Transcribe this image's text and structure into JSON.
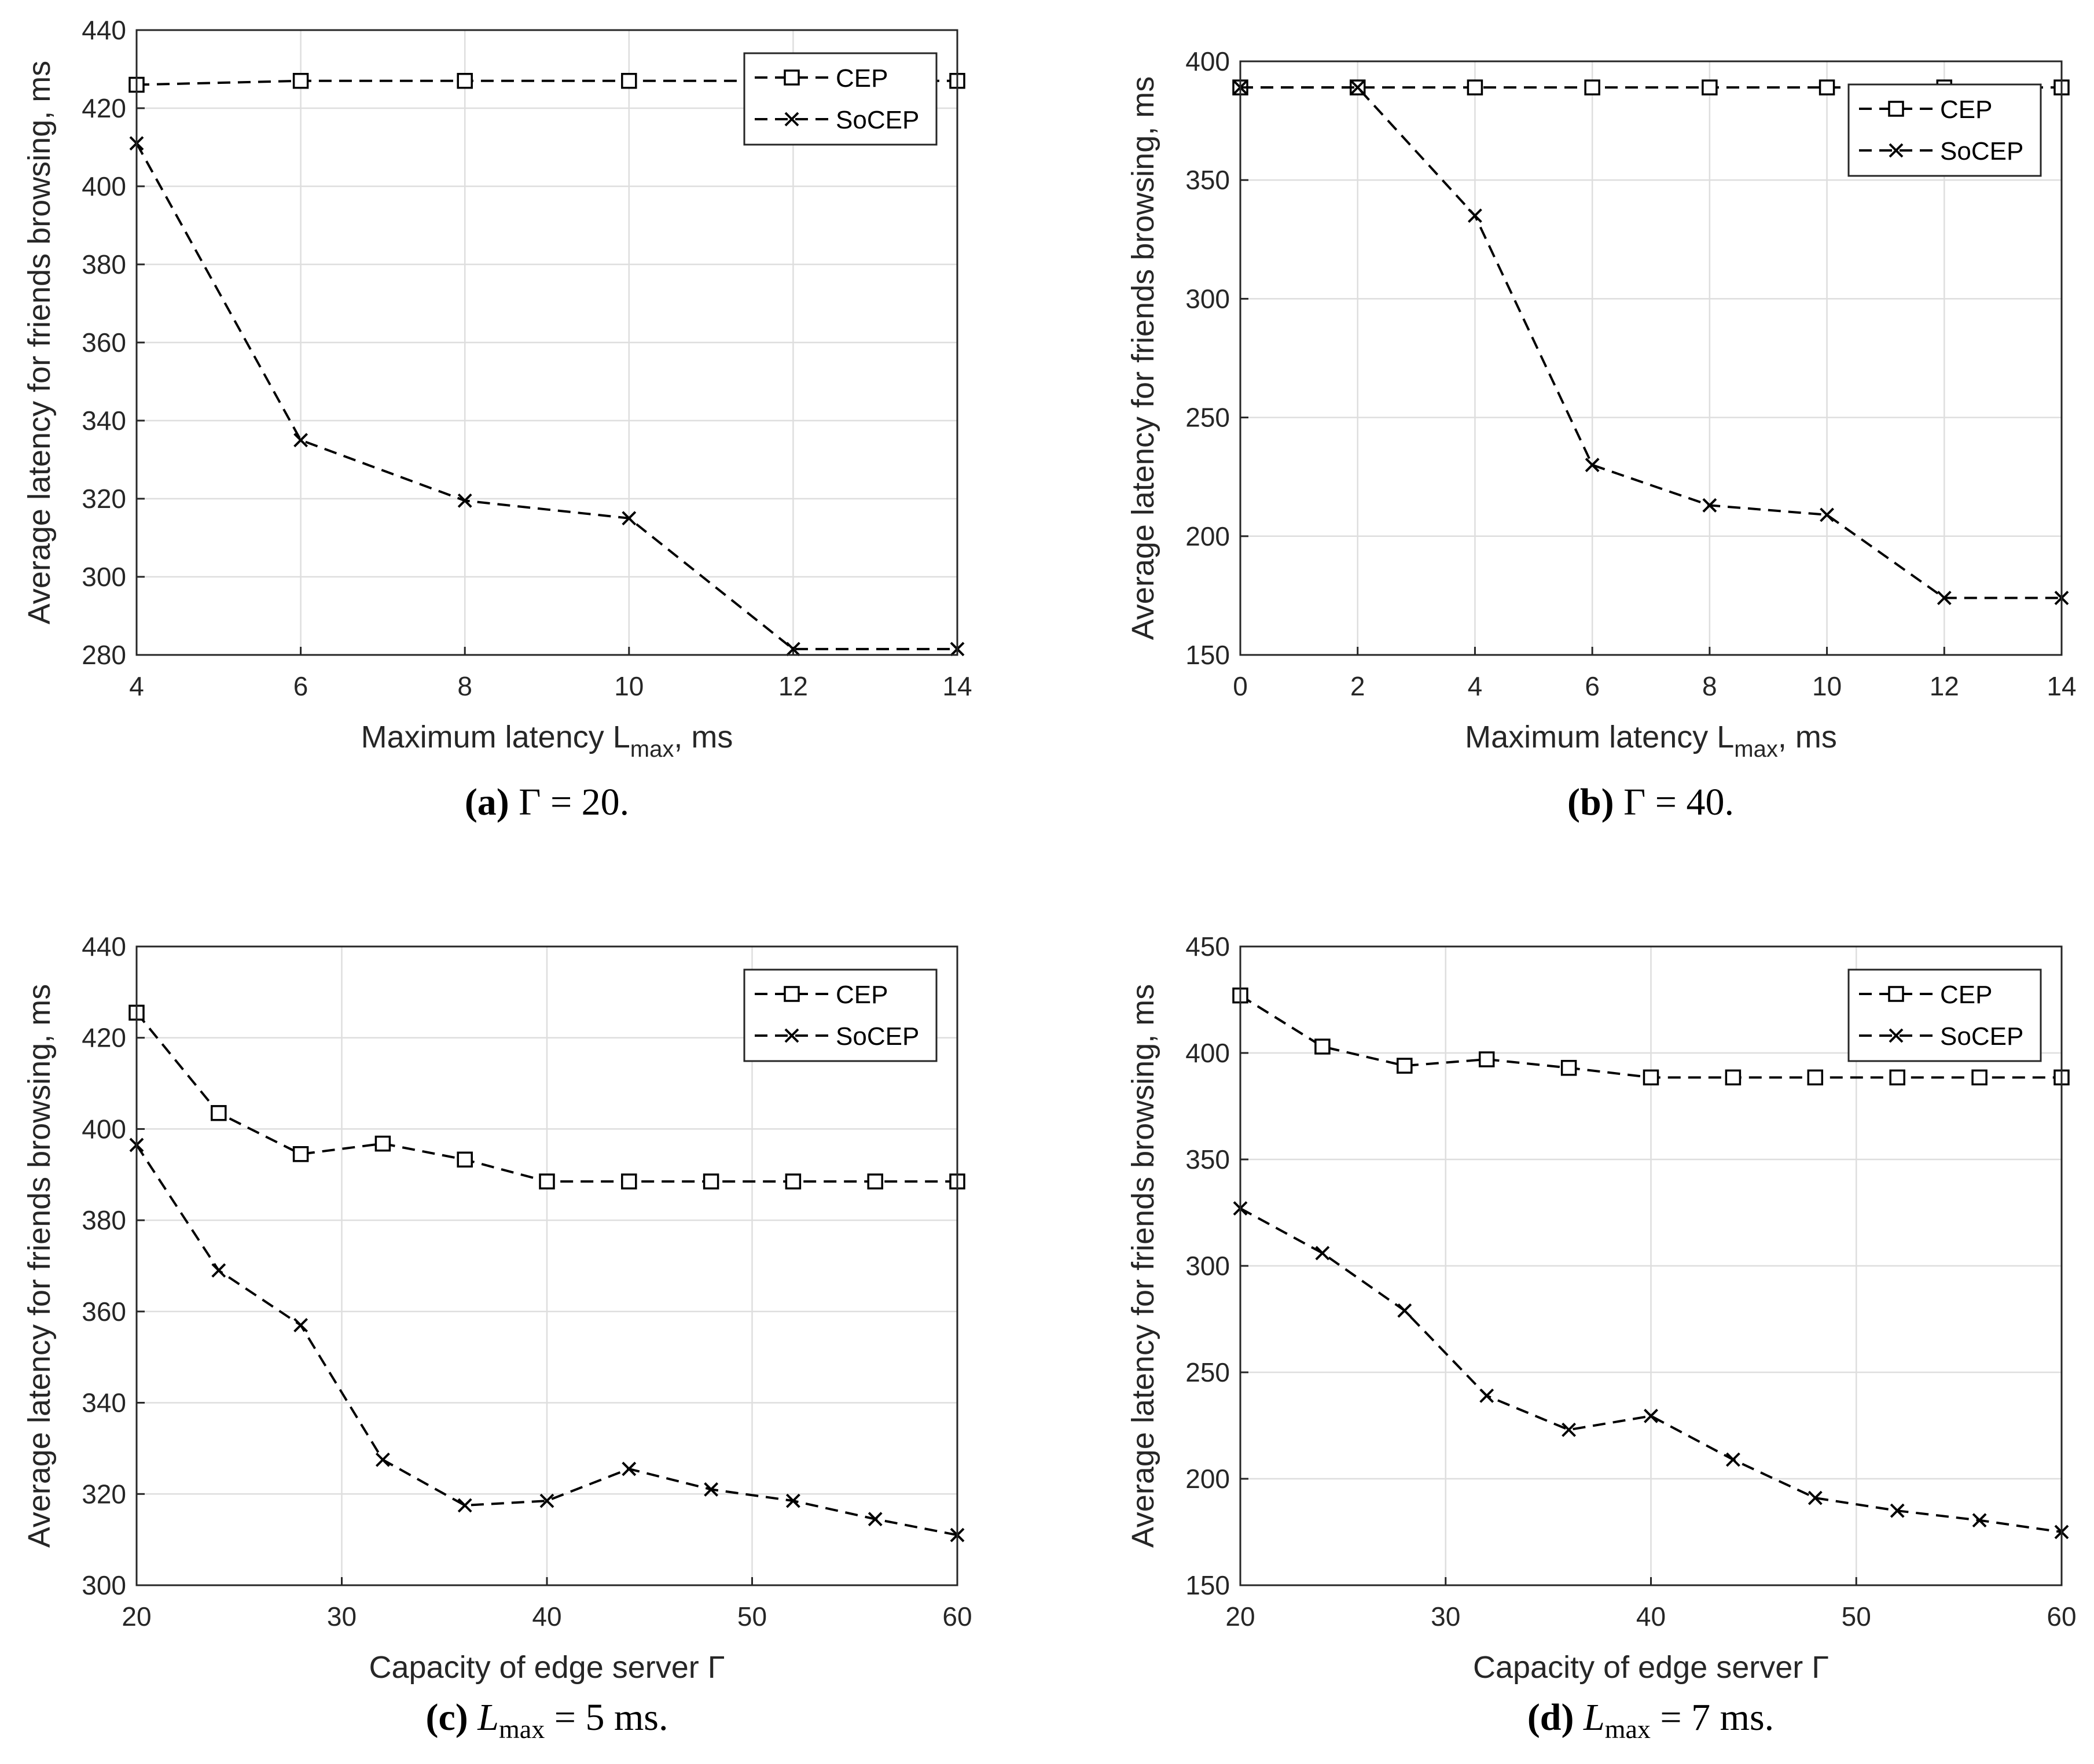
{
  "chart_data": [
    {
      "type": "line",
      "panel": "a",
      "caption_label": "(a)",
      "caption_math": "Γ = 20.",
      "xlabel": "Maximum latency L",
      "xlabel_sub": "max",
      "xlabel_suffix": ", ms",
      "ylabel": "Average latency for friends browsing, ms",
      "xlim": [
        4,
        14
      ],
      "ylim": [
        280,
        440
      ],
      "xticks": [
        4,
        6,
        8,
        10,
        12,
        14
      ],
      "yticks": [
        280,
        300,
        320,
        340,
        360,
        380,
        400,
        420,
        440
      ],
      "grid": true,
      "legend_position": "top-right",
      "series": [
        {
          "name": "CEP",
          "marker": "square",
          "x": [
            4,
            6,
            8,
            10,
            12,
            14
          ],
          "values": [
            426,
            427,
            427,
            427,
            427,
            427
          ]
        },
        {
          "name": "SoCEP",
          "marker": "x",
          "x": [
            4,
            6,
            8,
            10,
            12,
            14
          ],
          "values": [
            411,
            335,
            319.5,
            315,
            281.5,
            281.5
          ]
        }
      ]
    },
    {
      "type": "line",
      "panel": "b",
      "caption_label": "(b)",
      "caption_math": "Γ = 40.",
      "xlabel": "Maximum latency L",
      "xlabel_sub": "max",
      "xlabel_suffix": ", ms",
      "ylabel": "Average latency for friends browsing, ms",
      "xlim": [
        0,
        14
      ],
      "ylim": [
        150,
        400
      ],
      "xticks": [
        0,
        2,
        4,
        6,
        8,
        10,
        12,
        14
      ],
      "yticks": [
        150,
        200,
        250,
        300,
        350,
        400
      ],
      "grid": true,
      "legend_position": "top-right",
      "series": [
        {
          "name": "CEP",
          "marker": "square",
          "x": [
            0,
            2,
            4,
            6,
            8,
            10,
            12,
            14
          ],
          "values": [
            389,
            389,
            389,
            389,
            389,
            389,
            389,
            389
          ]
        },
        {
          "name": "SoCEP",
          "marker": "x",
          "x": [
            0,
            2,
            4,
            6,
            8,
            10,
            12,
            14
          ],
          "values": [
            389,
            389,
            335,
            230,
            213,
            209,
            174,
            174
          ]
        }
      ]
    },
    {
      "type": "line",
      "panel": "c",
      "caption_label": "(c)",
      "caption_math_prefix": "L",
      "caption_math_sub": "max",
      "caption_math": " = 5 ms.",
      "xlabel": "Capacity of edge server Γ",
      "ylabel": "Average latency for friends browsing, ms",
      "xlim": [
        20,
        60
      ],
      "ylim": [
        300,
        440
      ],
      "xticks": [
        20,
        30,
        40,
        50,
        60
      ],
      "yticks": [
        300,
        320,
        340,
        360,
        380,
        400,
        420,
        440
      ],
      "grid": true,
      "legend_position": "top-right",
      "series": [
        {
          "name": "CEP",
          "marker": "square",
          "x": [
            20,
            24,
            28,
            32,
            36,
            40,
            44,
            48,
            52,
            56,
            60
          ],
          "values": [
            425.5,
            403.5,
            394.5,
            396.8,
            393.3,
            388.5,
            388.5,
            388.5,
            388.5,
            388.5,
            388.5
          ]
        },
        {
          "name": "SoCEP",
          "marker": "x",
          "x": [
            20,
            24,
            28,
            32,
            36,
            40,
            44,
            48,
            52,
            56,
            60
          ],
          "values": [
            396.5,
            369,
            357,
            327.5,
            317.5,
            318.5,
            325.5,
            321,
            318.5,
            314.5,
            311
          ]
        }
      ]
    },
    {
      "type": "line",
      "panel": "d",
      "caption_label": "(d)",
      "caption_math_prefix": "L",
      "caption_math_sub": "max",
      "caption_math": " = 7 ms.",
      "xlabel": "Capacity of edge server Γ",
      "ylabel": "Average latency for friends browsing, ms",
      "xlim": [
        20,
        60
      ],
      "ylim": [
        150,
        450
      ],
      "xticks": [
        20,
        30,
        40,
        50,
        60
      ],
      "yticks": [
        150,
        200,
        250,
        300,
        350,
        400,
        450
      ],
      "grid": true,
      "legend_position": "top-right",
      "series": [
        {
          "name": "CEP",
          "marker": "square",
          "x": [
            20,
            24,
            28,
            32,
            36,
            40,
            44,
            48,
            52,
            56,
            60
          ],
          "values": [
            427,
            403,
            394,
            397,
            393,
            388.5,
            388.5,
            388.5,
            388.5,
            388.5,
            388.5
          ]
        },
        {
          "name": "SoCEP",
          "marker": "x",
          "x": [
            20,
            24,
            28,
            32,
            36,
            40,
            44,
            48,
            52,
            56,
            60
          ],
          "values": [
            327,
            306,
            279,
            239,
            223,
            229.5,
            209,
            191,
            185,
            180.5,
            175
          ]
        }
      ]
    }
  ]
}
